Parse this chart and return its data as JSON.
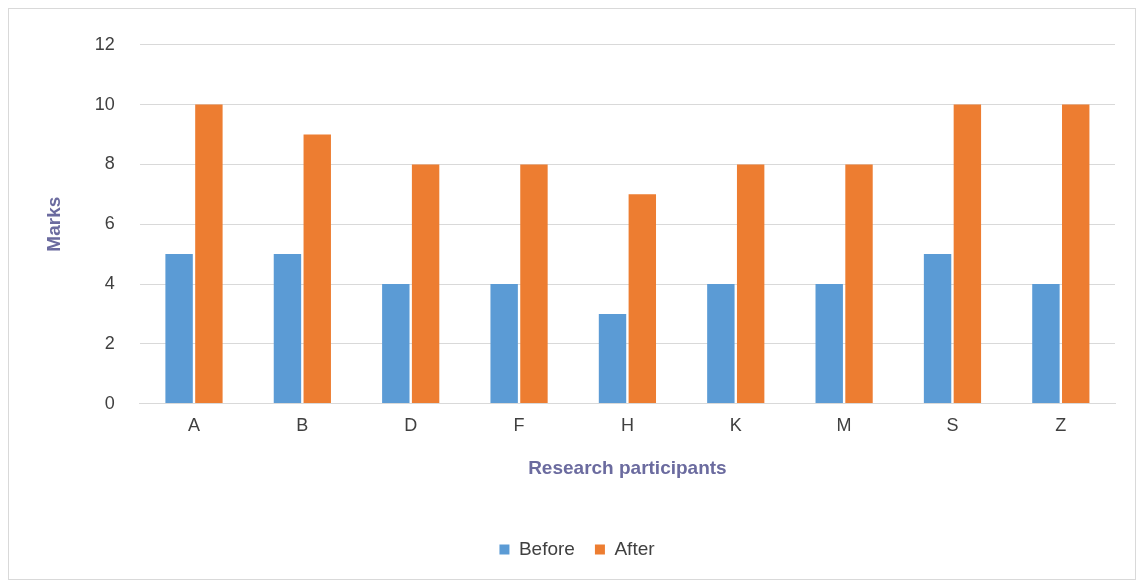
{
  "chart_data": {
    "type": "bar",
    "xlabel": "Research participants",
    "ylabel": "Marks",
    "categories": [
      "A",
      "B",
      "D",
      "F",
      "H",
      "K",
      "M",
      "S",
      "Z"
    ],
    "series": [
      {
        "name": "Before",
        "color": "#5b9bd5",
        "values": [
          5,
          5,
          4,
          4,
          3,
          4,
          4,
          5,
          4
        ]
      },
      {
        "name": "After",
        "color": "#ed7d31",
        "values": [
          10,
          9,
          8,
          8,
          7,
          8,
          8,
          10,
          10
        ]
      }
    ],
    "ylim": [
      0,
      12
    ],
    "yticks": [
      0,
      2,
      4,
      6,
      8,
      10,
      12
    ],
    "grid": "y",
    "legend": "bottom"
  }
}
